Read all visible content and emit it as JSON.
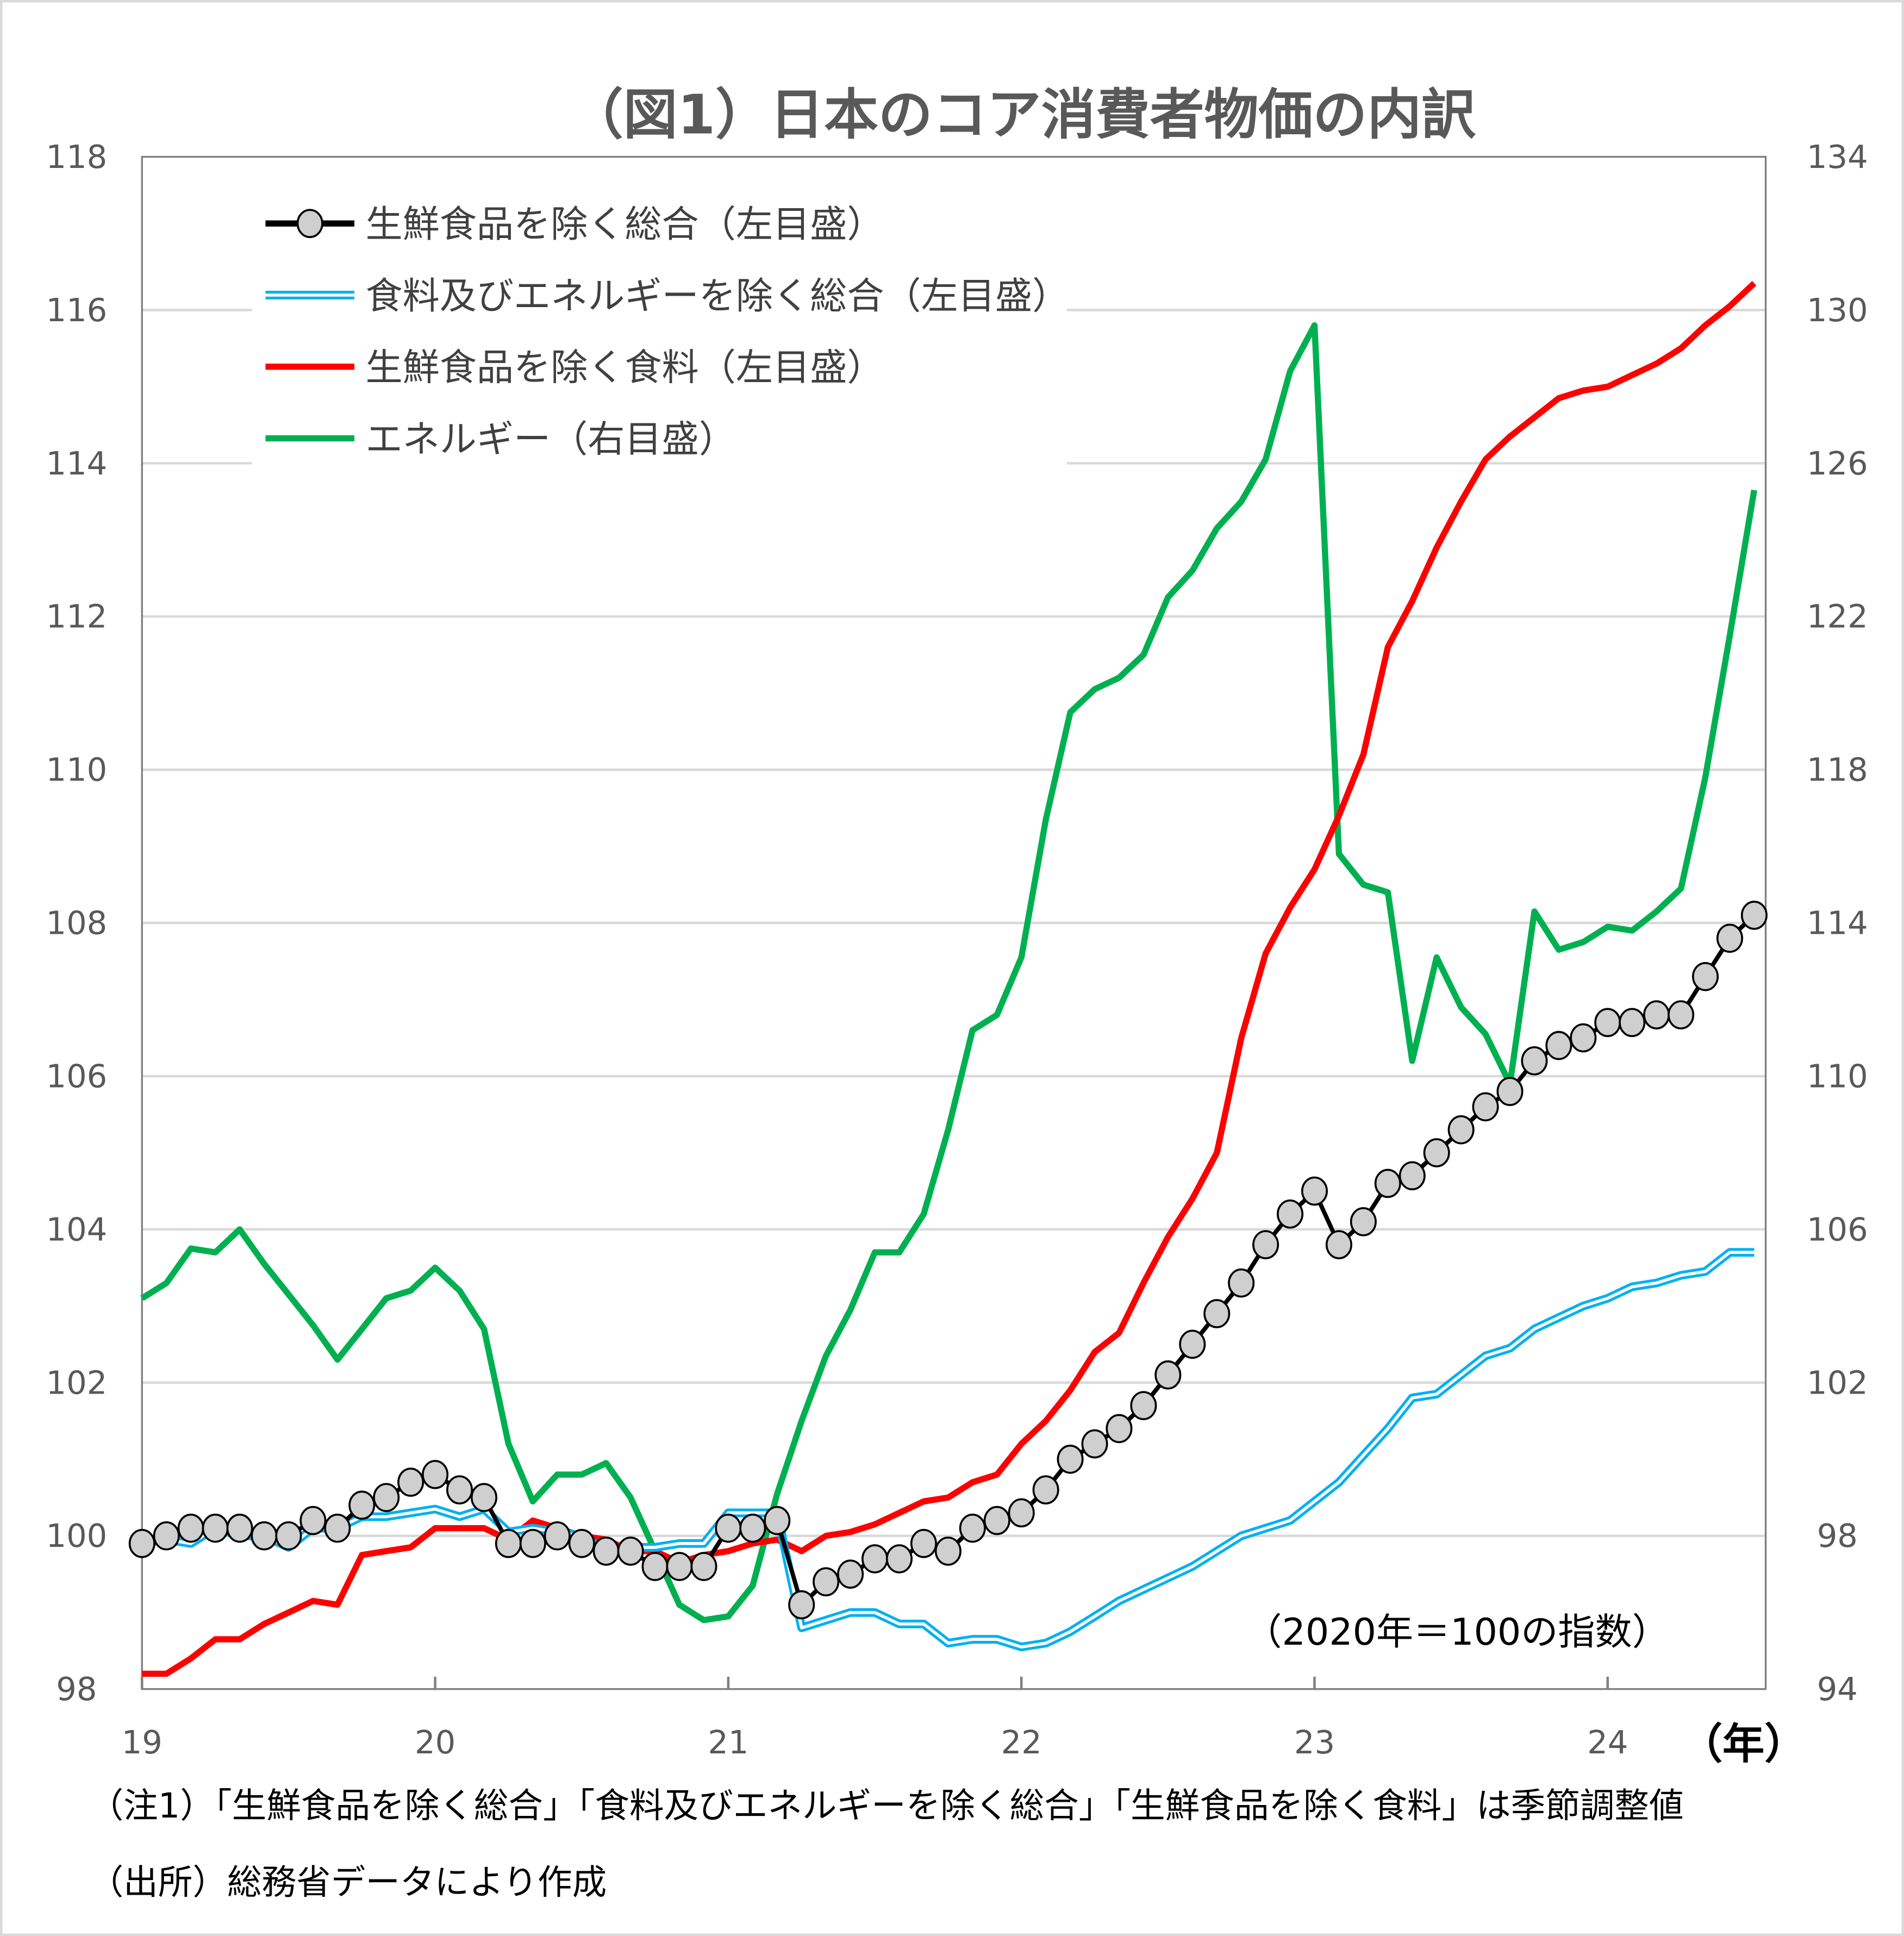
{
  "chart_data": {
    "type": "line",
    "title": "（図1）日本のコア消費者物価の内訳",
    "x_tick_labels": [
      "19",
      "20",
      "21",
      "22",
      "23",
      "24"
    ],
    "x_unit_label": "（年）",
    "x_start": "2019-01",
    "x_end": "2024-07",
    "frequency": "monthly",
    "left_axis": {
      "ylim": [
        98,
        118
      ],
      "ticks": [
        98,
        100,
        102,
        104,
        106,
        108,
        110,
        112,
        114,
        116,
        118
      ]
    },
    "right_axis": {
      "ylim": [
        94,
        134
      ],
      "ticks": [
        94,
        98,
        102,
        106,
        110,
        114,
        118,
        122,
        126,
        130,
        134
      ]
    },
    "grid": "horizontal",
    "legend_position": "top-left",
    "annotation": "（2020年＝100の指数）",
    "series": [
      {
        "name": "生鮮食品を除く総合（左目盛）",
        "axis": "left",
        "color": "#000000",
        "marker": "circle",
        "marker_color": "#d0cfd0",
        "values": [
          99.9,
          100.0,
          100.1,
          100.1,
          100.1,
          100.0,
          100.0,
          100.2,
          100.1,
          100.4,
          100.5,
          100.7,
          100.8,
          100.6,
          100.5,
          99.9,
          99.9,
          100.0,
          99.9,
          99.8,
          99.8,
          99.6,
          99.6,
          99.6,
          100.1,
          100.1,
          100.2,
          99.1,
          99.4,
          99.5,
          99.7,
          99.7,
          99.9,
          99.8,
          100.1,
          100.2,
          100.3,
          100.6,
          101.0,
          101.2,
          101.4,
          101.7,
          102.1,
          102.5,
          102.9,
          103.3,
          103.8,
          104.2,
          104.5,
          103.8,
          104.1,
          104.6,
          104.7,
          105.0,
          105.3,
          105.6,
          105.8,
          106.2,
          106.4,
          106.5,
          106.7,
          106.7,
          106.8,
          106.8,
          107.3,
          107.8,
          108.1
        ]
      },
      {
        "name": "食料及びエネルギーを除く総合（左目盛）",
        "axis": "left",
        "color": "#00b0f0",
        "style": "double",
        "values": [
          99.9,
          99.95,
          99.9,
          100.1,
          100.0,
          100.0,
          99.85,
          100.1,
          100.1,
          100.25,
          100.25,
          100.3,
          100.35,
          100.25,
          100.35,
          100.05,
          100.1,
          100.05,
          100.0,
          99.8,
          99.85,
          99.85,
          99.9,
          99.9,
          100.3,
          100.3,
          100.3,
          98.8,
          98.9,
          99.0,
          99.0,
          98.85,
          98.85,
          98.6,
          98.65,
          98.65,
          98.55,
          98.6,
          98.75,
          98.95,
          99.15,
          99.3,
          99.45,
          99.6,
          99.8,
          100.0,
          100.1,
          100.2,
          100.45,
          100.7,
          101.05,
          101.4,
          101.8,
          101.85,
          102.1,
          102.35,
          102.45,
          102.7,
          102.85,
          103.0,
          103.1,
          103.25,
          103.3,
          103.4,
          103.45,
          103.7,
          103.7
        ]
      },
      {
        "name": "生鮮食品を除く食料（左目盛）",
        "axis": "left",
        "color": "#ff0000",
        "values": [
          98.2,
          98.2,
          98.4,
          98.65,
          98.65,
          98.85,
          99.0,
          99.15,
          99.1,
          99.75,
          99.8,
          99.85,
          100.1,
          100.1,
          100.1,
          99.95,
          100.2,
          100.1,
          100.0,
          99.95,
          99.8,
          99.8,
          99.65,
          99.75,
          99.8,
          99.9,
          99.95,
          99.8,
          100.0,
          100.05,
          100.15,
          100.3,
          100.45,
          100.5,
          100.7,
          100.8,
          101.2,
          101.5,
          101.9,
          102.4,
          102.65,
          103.3,
          103.9,
          104.4,
          105.0,
          106.5,
          107.6,
          108.2,
          108.7,
          109.4,
          110.2,
          111.6,
          112.2,
          112.9,
          113.5,
          114.05,
          114.35,
          114.6,
          114.85,
          114.95,
          115.0,
          115.15,
          115.3,
          115.5,
          115.8,
          116.05,
          116.35
        ]
      },
      {
        "name": "エネルギー（右目盛）",
        "axis": "right",
        "color": "#00b050",
        "values": [
          104.2,
          104.6,
          105.5,
          105.4,
          106.0,
          105.1,
          104.3,
          103.5,
          102.6,
          103.4,
          104.2,
          104.4,
          105.0,
          104.4,
          103.4,
          100.4,
          98.9,
          99.6,
          99.6,
          99.9,
          99.0,
          97.6,
          96.2,
          95.8,
          95.9,
          96.7,
          99.1,
          101.0,
          102.7,
          103.9,
          105.4,
          105.4,
          106.4,
          108.6,
          111.2,
          111.6,
          113.1,
          116.7,
          119.5,
          120.1,
          120.4,
          121.0,
          122.5,
          123.2,
          124.3,
          125.0,
          126.1,
          128.4,
          129.6,
          115.8,
          115.0,
          114.8,
          110.4,
          113.1,
          111.8,
          111.1,
          109.8,
          114.3,
          113.3,
          113.5,
          113.9,
          113.8,
          114.3,
          114.9,
          117.8,
          121.5,
          125.3
        ]
      }
    ]
  },
  "notes": {
    "note1": "（注1）「生鮮食品を除く総合」「食料及びエネルギーを除く総合」「生鮮食品を除く食料」は季節調整値",
    "source": "（出所）総務省データにより作成"
  }
}
